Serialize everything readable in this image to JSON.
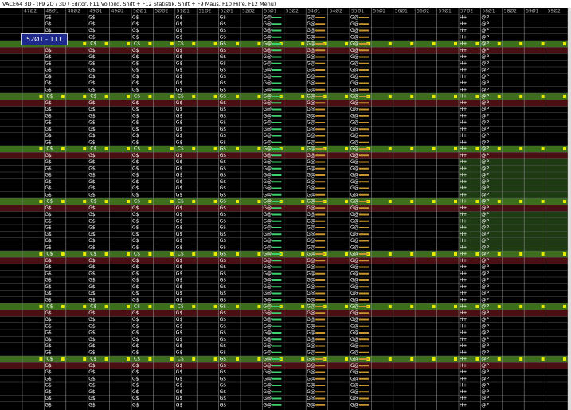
{
  "window": {
    "title": "VACE64 3D - (F9 2D / 3D / Editor, F11 Vollbild, Shift + F12 Statistik, Shift + F9 Maus, F10 Hilfe, F12 Menü)"
  },
  "grid": {
    "columns": [
      "47Ø2",
      "48Ø1",
      "48Ø2",
      "49Ø1",
      "49Ø2",
      "5ØØ1",
      "5ØØ2",
      "51Ø1",
      "51Ø2",
      "52Ø1",
      "52Ø2",
      "53Ø1",
      "53Ø2",
      "54Ø1",
      "54Ø2",
      "55Ø1",
      "55Ø2",
      "56Ø1",
      "56Ø2",
      "57Ø1",
      "57Ø2",
      "58Ø1",
      "58Ø2",
      "59Ø1",
      "59Ø2"
    ],
    "cell_text": [
      null,
      "G$",
      null,
      "G$",
      null,
      "G$",
      null,
      "G$",
      null,
      "G$",
      null,
      "G@",
      null,
      "G@",
      null,
      "G@",
      null,
      null,
      null,
      null,
      "H+",
      "@P",
      null,
      null,
      null
    ],
    "section_text": "C$",
    "tooltip": "52Ø1 - 111"
  }
}
